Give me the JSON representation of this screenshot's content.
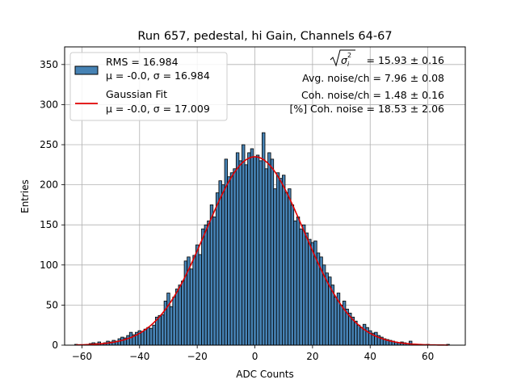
{
  "chart_data": {
    "type": "bar",
    "title": "Run 657, pedestal, hi Gain, Channels 64-67",
    "xlabel": "ADC Counts",
    "ylabel": "Entries",
    "xlim": [
      -66,
      73
    ],
    "ylim": [
      0,
      372
    ],
    "xticks": [
      -60,
      -40,
      -20,
      0,
      20,
      40,
      60
    ],
    "yticks": [
      0,
      50,
      100,
      150,
      200,
      250,
      300,
      350
    ],
    "grid": true,
    "legend_position": "top-left",
    "bar_color": "#4682b4",
    "fit_color": "#e00000",
    "bins": [
      {
        "x": -62,
        "y": 1
      },
      {
        "x": -58,
        "y": 1
      },
      {
        "x": -57,
        "y": 2
      },
      {
        "x": -56,
        "y": 3
      },
      {
        "x": -55,
        "y": 2
      },
      {
        "x": -54,
        "y": 4
      },
      {
        "x": -53,
        "y": 2
      },
      {
        "x": -52,
        "y": 3
      },
      {
        "x": -51,
        "y": 5
      },
      {
        "x": -50,
        "y": 4
      },
      {
        "x": -49,
        "y": 6
      },
      {
        "x": -48,
        "y": 5
      },
      {
        "x": -47,
        "y": 8
      },
      {
        "x": -46,
        "y": 10
      },
      {
        "x": -45,
        "y": 9
      },
      {
        "x": -44,
        "y": 12
      },
      {
        "x": -43,
        "y": 16
      },
      {
        "x": -42,
        "y": 13
      },
      {
        "x": -41,
        "y": 16
      },
      {
        "x": -40,
        "y": 18
      },
      {
        "x": -39,
        "y": 17
      },
      {
        "x": -38,
        "y": 20
      },
      {
        "x": -37,
        "y": 22
      },
      {
        "x": -36,
        "y": 21
      },
      {
        "x": -35,
        "y": 25
      },
      {
        "x": -34,
        "y": 35
      },
      {
        "x": -33,
        "y": 37
      },
      {
        "x": -32,
        "y": 38
      },
      {
        "x": -31,
        "y": 55
      },
      {
        "x": -30,
        "y": 65
      },
      {
        "x": -29,
        "y": 48
      },
      {
        "x": -28,
        "y": 60
      },
      {
        "x": -27,
        "y": 70
      },
      {
        "x": -26,
        "y": 75
      },
      {
        "x": -25,
        "y": 80
      },
      {
        "x": -24,
        "y": 105
      },
      {
        "x": -23,
        "y": 110
      },
      {
        "x": -22,
        "y": 95
      },
      {
        "x": -21,
        "y": 112
      },
      {
        "x": -20,
        "y": 125
      },
      {
        "x": -19,
        "y": 113
      },
      {
        "x": -18,
        "y": 145
      },
      {
        "x": -17,
        "y": 150
      },
      {
        "x": -16,
        "y": 155
      },
      {
        "x": -15,
        "y": 175
      },
      {
        "x": -14,
        "y": 160
      },
      {
        "x": -13,
        "y": 190
      },
      {
        "x": -12,
        "y": 205
      },
      {
        "x": -11,
        "y": 200
      },
      {
        "x": -10,
        "y": 232
      },
      {
        "x": -9,
        "y": 210
      },
      {
        "x": -8,
        "y": 215
      },
      {
        "x": -7,
        "y": 220
      },
      {
        "x": -6,
        "y": 240
      },
      {
        "x": -5,
        "y": 230
      },
      {
        "x": -4,
        "y": 250
      },
      {
        "x": -3,
        "y": 225
      },
      {
        "x": -2,
        "y": 240
      },
      {
        "x": -1,
        "y": 245
      },
      {
        "x": 0,
        "y": 235
      },
      {
        "x": 1,
        "y": 237
      },
      {
        "x": 2,
        "y": 230
      },
      {
        "x": 3,
        "y": 265
      },
      {
        "x": 4,
        "y": 220
      },
      {
        "x": 5,
        "y": 240
      },
      {
        "x": 6,
        "y": 232
      },
      {
        "x": 7,
        "y": 195
      },
      {
        "x": 8,
        "y": 215
      },
      {
        "x": 9,
        "y": 208
      },
      {
        "x": 10,
        "y": 212
      },
      {
        "x": 11,
        "y": 190
      },
      {
        "x": 12,
        "y": 195
      },
      {
        "x": 13,
        "y": 175
      },
      {
        "x": 14,
        "y": 155
      },
      {
        "x": 15,
        "y": 160
      },
      {
        "x": 16,
        "y": 145
      },
      {
        "x": 17,
        "y": 150
      },
      {
        "x": 18,
        "y": 140
      },
      {
        "x": 19,
        "y": 132
      },
      {
        "x": 20,
        "y": 128
      },
      {
        "x": 21,
        "y": 130
      },
      {
        "x": 22,
        "y": 115
      },
      {
        "x": 23,
        "y": 110
      },
      {
        "x": 24,
        "y": 100
      },
      {
        "x": 25,
        "y": 90
      },
      {
        "x": 26,
        "y": 85
      },
      {
        "x": 27,
        "y": 75
      },
      {
        "x": 28,
        "y": 60
      },
      {
        "x": 29,
        "y": 65
      },
      {
        "x": 30,
        "y": 50
      },
      {
        "x": 31,
        "y": 55
      },
      {
        "x": 32,
        "y": 45
      },
      {
        "x": 33,
        "y": 40
      },
      {
        "x": 34,
        "y": 35
      },
      {
        "x": 35,
        "y": 30
      },
      {
        "x": 36,
        "y": 25
      },
      {
        "x": 37,
        "y": 22
      },
      {
        "x": 38,
        "y": 26
      },
      {
        "x": 39,
        "y": 22
      },
      {
        "x": 40,
        "y": 18
      },
      {
        "x": 41,
        "y": 15
      },
      {
        "x": 42,
        "y": 16
      },
      {
        "x": 43,
        "y": 12
      },
      {
        "x": 44,
        "y": 10
      },
      {
        "x": 45,
        "y": 8
      },
      {
        "x": 46,
        "y": 7
      },
      {
        "x": 47,
        "y": 6
      },
      {
        "x": 48,
        "y": 5
      },
      {
        "x": 49,
        "y": 4
      },
      {
        "x": 50,
        "y": 3
      },
      {
        "x": 51,
        "y": 4
      },
      {
        "x": 52,
        "y": 3
      },
      {
        "x": 53,
        "y": 2
      },
      {
        "x": 54,
        "y": 5
      },
      {
        "x": 55,
        "y": 1
      },
      {
        "x": 57,
        "y": 1
      },
      {
        "x": 60,
        "y": 1
      },
      {
        "x": 67,
        "y": 1
      }
    ],
    "fit": {
      "amplitude": 235,
      "mean": -0.0,
      "sigma": 17.009,
      "x_range": [
        -62,
        67
      ]
    },
    "legend": [
      {
        "type": "bar",
        "line1": "RMS = 16.984",
        "line2": "μ = -0.0, σ = 16.984"
      },
      {
        "type": "line",
        "line1": "Gaussian Fit",
        "line2": "μ = -0.0, σ = 17.009"
      }
    ],
    "annotations": {
      "sigma_value": "= 15.93 ± 0.16",
      "avg_noise": "Avg. noise/ch = 7.96 ± 0.08",
      "coh_noise": "Coh. noise/ch = 1.48 ± 0.16",
      "coh_pct": "[%] Coh. noise = 18.53 ± 2.06"
    }
  }
}
